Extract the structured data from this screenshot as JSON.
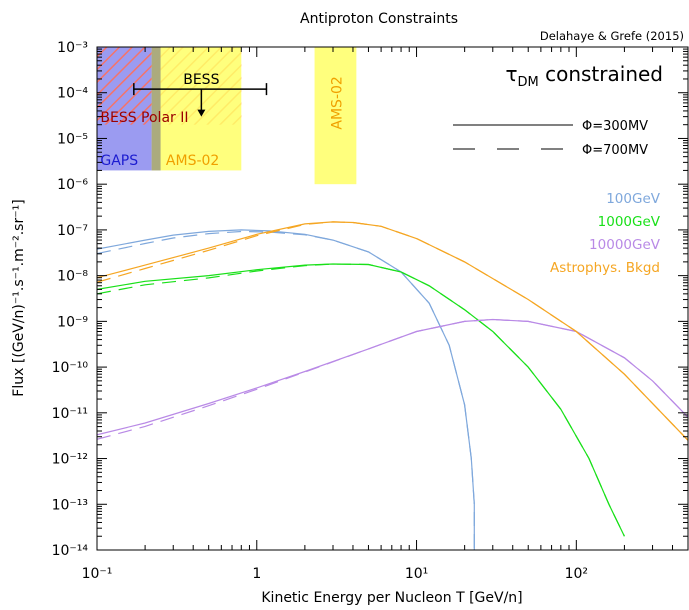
{
  "chart_data": {
    "type": "line",
    "title": "Antiproton Constraints",
    "credit": "Delahaye & Grefe (2015)",
    "xlabel": "Kinetic Energy per Nucleon T [GeV/n]",
    "ylabel": "Flux [(GeV/n)⁻¹.s⁻¹.m⁻².sr⁻¹]",
    "xscale": "log",
    "yscale": "log",
    "xlim": [
      0.1,
      500
    ],
    "ylim": [
      1e-14,
      0.001
    ],
    "x_ticks": [
      {
        "value": 0.1,
        "label": "10⁻¹"
      },
      {
        "value": 1,
        "label": "1"
      },
      {
        "value": 10,
        "label": "10¹"
      },
      {
        "value": 100,
        "label": "10²"
      }
    ],
    "y_ticks": [
      {
        "value": 1e-14,
        "label": "10⁻¹⁴"
      },
      {
        "value": 1e-13,
        "label": "10⁻¹³"
      },
      {
        "value": 1e-12,
        "label": "10⁻¹²"
      },
      {
        "value": 1e-11,
        "label": "10⁻¹¹"
      },
      {
        "value": 1e-10,
        "label": "10⁻¹⁰"
      },
      {
        "value": 1e-09,
        "label": "10⁻⁹"
      },
      {
        "value": 1e-08,
        "label": "10⁻⁸"
      },
      {
        "value": 1e-07,
        "label": "10⁻⁷"
      },
      {
        "value": 1e-06,
        "label": "10⁻⁶"
      },
      {
        "value": 1e-05,
        "label": "10⁻⁵"
      },
      {
        "value": 0.0001,
        "label": "10⁻⁴"
      },
      {
        "value": 0.001,
        "label": "10⁻³"
      }
    ],
    "grid": false,
    "annotation": "τDM constrained",
    "annotation_parts": {
      "tau": "τ",
      "sub": "DM",
      "rest": " constrained"
    },
    "line_style_legend": [
      {
        "label": "Φ=300MV",
        "style": "solid"
      },
      {
        "label": "Φ=700MV",
        "style": "dashed"
      }
    ],
    "regions": [
      {
        "label": "GAPS",
        "color": "#8a8aee",
        "x": [
          0.1,
          0.25
        ],
        "y": [
          2e-06,
          0.001
        ],
        "label_color": "#1c1cd0"
      },
      {
        "label": "BESS Polar II",
        "color": "#ff9f7a",
        "hatch": true,
        "x": [
          0.1,
          0.8
        ],
        "y": [
          2e-05,
          0.001
        ],
        "label_color": "#9b0000"
      },
      {
        "label": "AMS-02",
        "color": "#ffff66",
        "x": [
          0.22,
          0.8
        ],
        "y": [
          2e-06,
          0.001
        ],
        "label_color": "#f0a000"
      },
      {
        "label": "AMS-02",
        "color": "#ffff66",
        "x": [
          2.3,
          4.2
        ],
        "y": [
          1e-06,
          0.001
        ],
        "label_color": "#f0a000"
      }
    ],
    "bess_marker": {
      "label": "BESS",
      "x_range": [
        0.17,
        1.15
      ],
      "y": 0.00012,
      "arrow_x": 0.45,
      "arrow_to_y": 3e-05
    },
    "series": [
      {
        "name": "100GeV",
        "color": "#7fa8dc",
        "x": [
          0.1,
          0.2,
          0.3,
          0.5,
          0.8,
          1.2,
          2,
          3,
          5,
          8,
          12,
          16,
          20,
          22,
          23,
          23
        ],
        "y": [
          3.8e-08,
          6e-08,
          7.7e-08,
          9.3e-08,
          1e-07,
          9.5e-08,
          8e-08,
          6e-08,
          3.3e-08,
          1.2e-08,
          2.5e-09,
          3e-10,
          1.5e-11,
          1e-12,
          1e-13,
          1e-14
        ]
      },
      {
        "name": "1000GeV",
        "color": "#19e019",
        "x": [
          0.1,
          0.2,
          0.5,
          1,
          2,
          3,
          5,
          8,
          12,
          20,
          30,
          50,
          80,
          120,
          160,
          200
        ],
        "y": [
          5e-09,
          7.5e-09,
          1e-08,
          1.35e-08,
          1.7e-08,
          1.8e-08,
          1.75e-08,
          1.2e-08,
          6e-09,
          1.8e-09,
          6e-10,
          1e-10,
          1.2e-11,
          1e-12,
          1e-13,
          2e-14
        ]
      },
      {
        "name": "10000GeV",
        "color": "#b98ae6",
        "x": [
          0.1,
          0.2,
          0.5,
          1,
          2,
          5,
          10,
          20,
          30,
          50,
          100,
          200,
          300,
          500
        ],
        "y": [
          3.3e-12,
          6e-12,
          1.6e-11,
          3.5e-11,
          8e-11,
          2.5e-10,
          6e-10,
          1e-09,
          1.1e-09,
          1e-09,
          6e-10,
          1.6e-10,
          5e-11,
          8e-12
        ]
      },
      {
        "name": "Astrophys. Bkgd",
        "color": "#f5a623",
        "x": [
          0.1,
          0.2,
          0.5,
          1,
          2,
          3,
          4,
          6,
          10,
          20,
          50,
          100,
          200,
          500
        ],
        "y": [
          9e-09,
          1.7e-08,
          4e-08,
          8e-08,
          1.35e-07,
          1.5e-07,
          1.45e-07,
          1.2e-07,
          6.5e-08,
          2e-08,
          3e-09,
          6e-10,
          7e-11,
          2.5e-12
        ]
      }
    ]
  }
}
